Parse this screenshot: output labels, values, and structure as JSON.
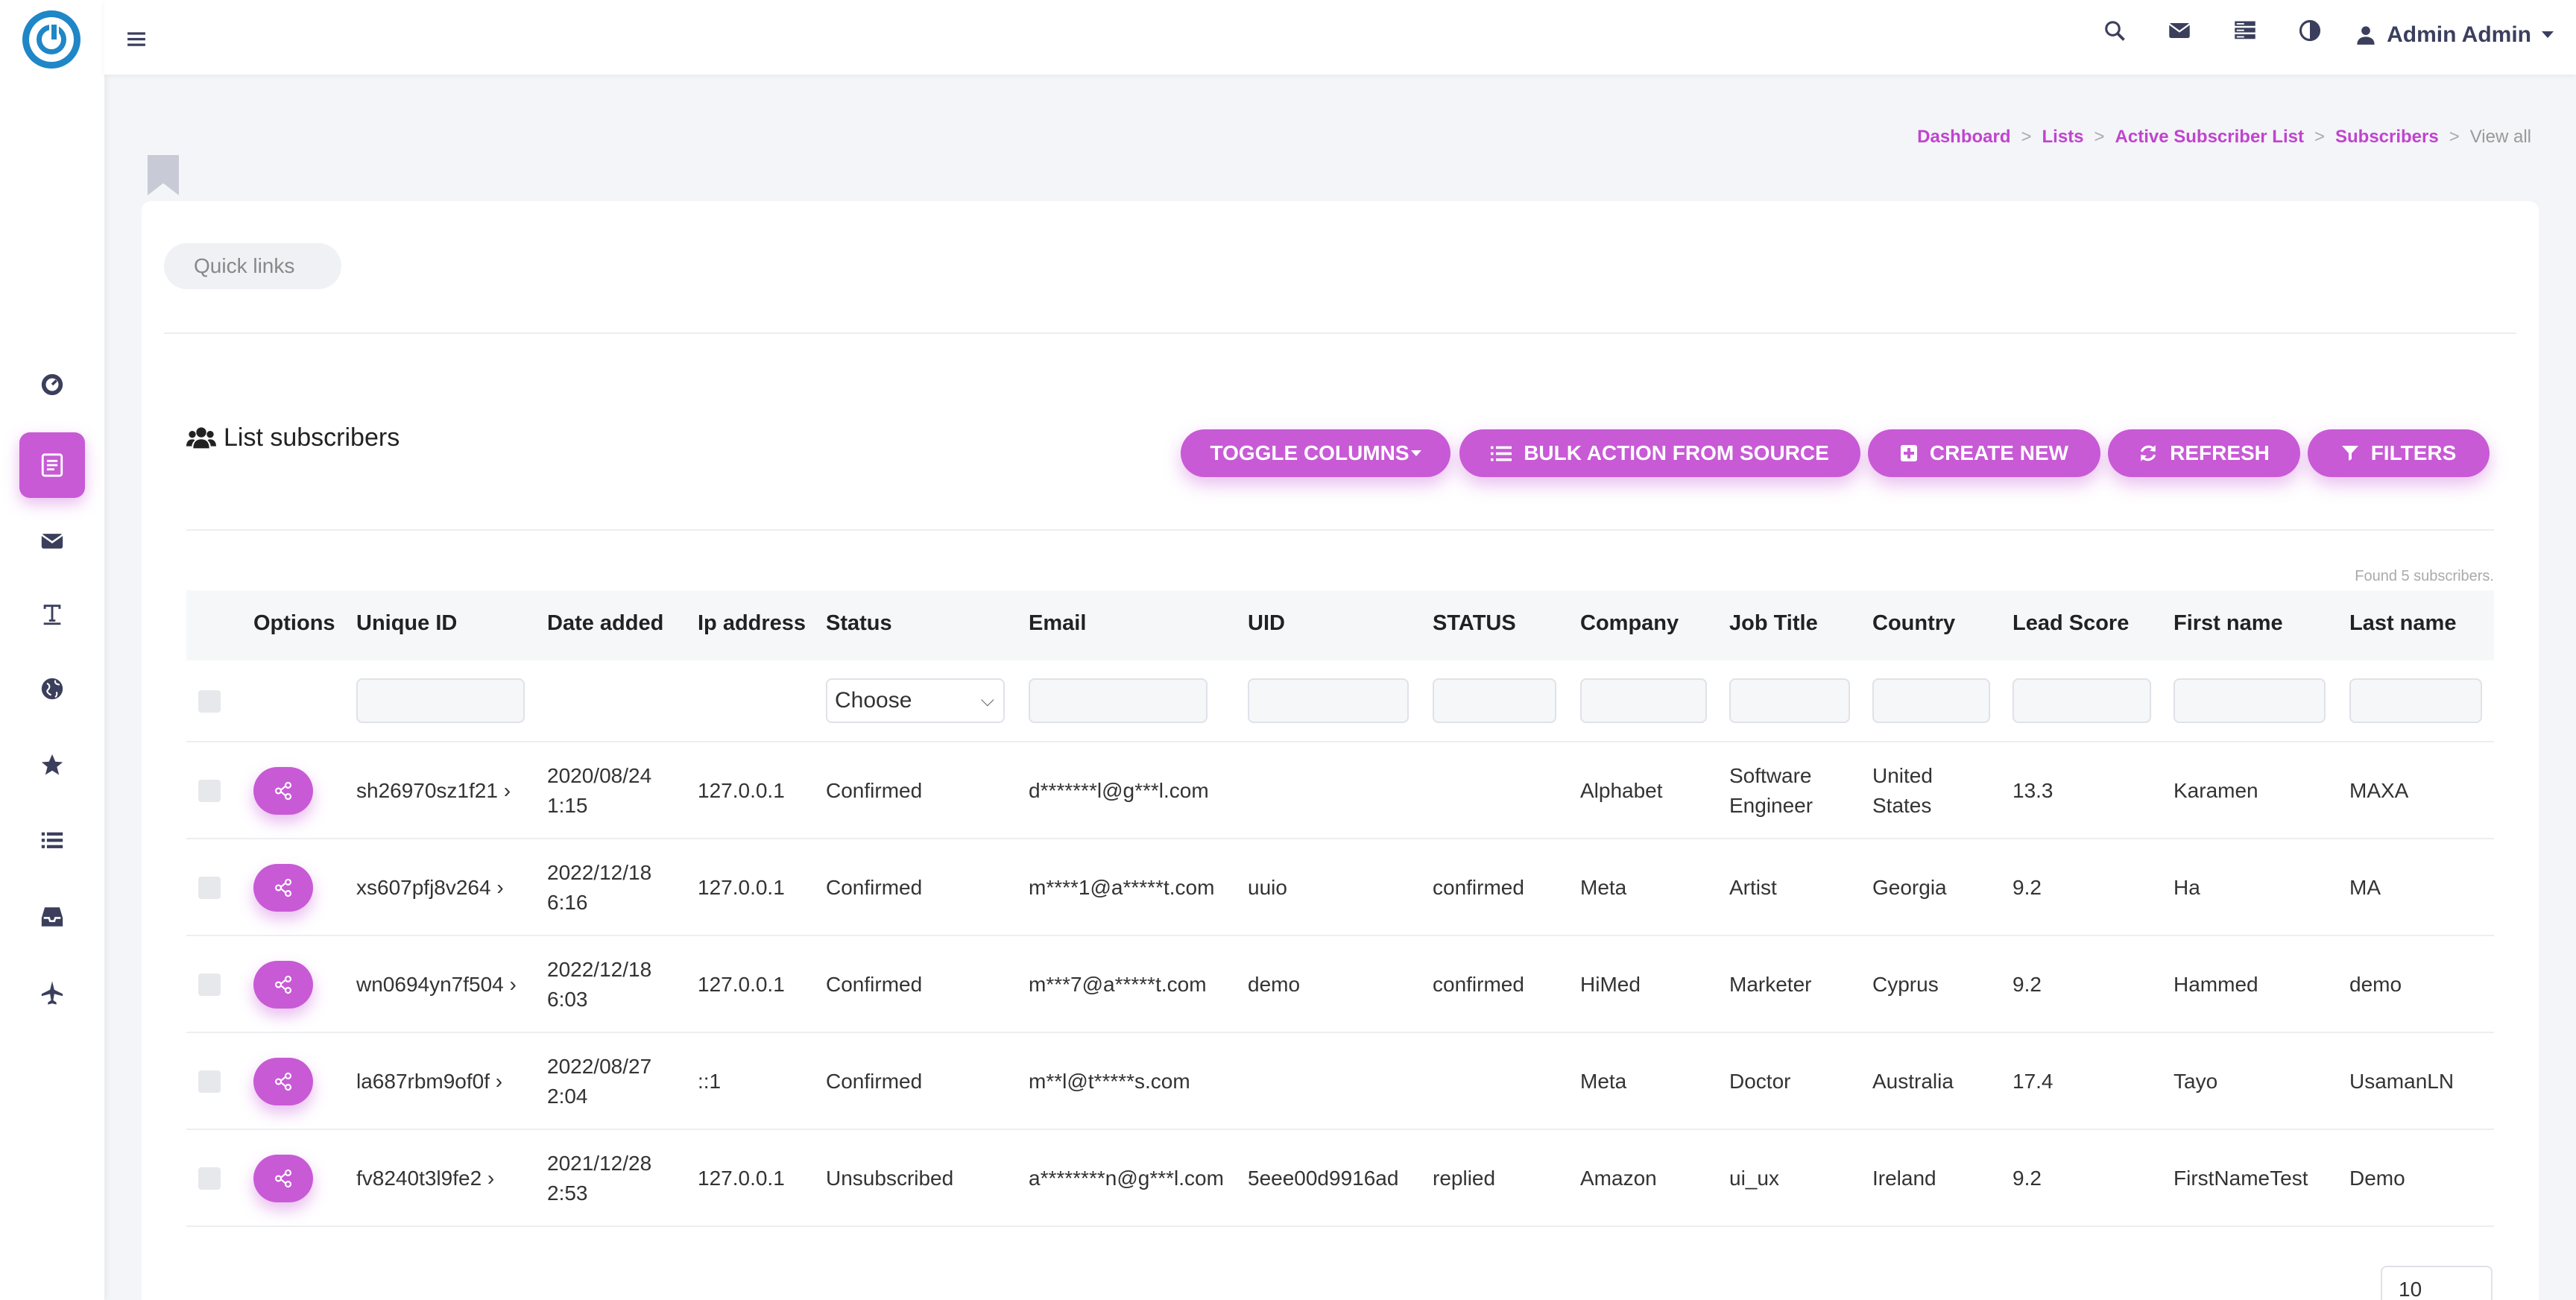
{
  "topbar": {
    "user_name": "Admin Admin"
  },
  "breadcrumb": [
    {
      "label": "Dashboard"
    },
    {
      "label": "Lists"
    },
    {
      "label": "Active Subscriber List"
    },
    {
      "label": "Subscribers"
    },
    {
      "label": "View all"
    }
  ],
  "quick_links_label": "Quick links",
  "list": {
    "title": "List subscribers",
    "found_text": "Found 5 subscribers."
  },
  "buttons": {
    "toggle_columns": "TOGGLE COLUMNS",
    "bulk_action": "BULK ACTION FROM SOURCE",
    "create_new": "CREATE NEW",
    "refresh": "REFRESH",
    "filters": "FILTERS"
  },
  "colors": {
    "accent": "#c85ad6",
    "brand_logo": "#1f86c7"
  },
  "table": {
    "columns": [
      "Options",
      "Unique ID",
      "Date added",
      "Ip address",
      "Status",
      "Email",
      "UID",
      "STATUS",
      "Company",
      "Job Title",
      "Country",
      "Lead Score",
      "First name",
      "Last name"
    ],
    "status_filter_value": "Choose",
    "rows": [
      {
        "uid": "sh26970sz1f21 ›",
        "date1": "2020/08/24",
        "date2": "1:15",
        "ip": "127.0.0.1",
        "status": "Confirmed",
        "email": "d*******l@g***l.com",
        "uid2": "",
        "status2": "",
        "company": "Alphabet",
        "job1": "Software",
        "job2": "Engineer",
        "country1": "United",
        "country2": "States",
        "score": "13.3",
        "first": "Karamen",
        "last": "MAXA"
      },
      {
        "uid": "xs607pfj8v264 ›",
        "date1": "2022/12/18",
        "date2": "6:16",
        "ip": "127.0.0.1",
        "status": "Confirmed",
        "email": "m****1@a*****t.com",
        "uid2": "uuio",
        "status2": "confirmed",
        "company": "Meta",
        "job1": "Artist",
        "job2": "",
        "country1": "Georgia",
        "country2": "",
        "score": "9.2",
        "first": "Ha",
        "last": "MA"
      },
      {
        "uid": "wn0694yn7f504 ›",
        "date1": "2022/12/18",
        "date2": "6:03",
        "ip": "127.0.0.1",
        "status": "Confirmed",
        "email": "m***7@a*****t.com",
        "uid2": "demo",
        "status2": "confirmed",
        "company": "HiMed",
        "job1": "Marketer",
        "job2": "",
        "country1": "Cyprus",
        "country2": "",
        "score": "9.2",
        "first": "Hammed",
        "last": "demo"
      },
      {
        "uid": "la687rbm9of0f ›",
        "date1": "2022/08/27",
        "date2": "2:04",
        "ip": "::1",
        "status": "Confirmed",
        "email": "m**l@t*****s.com",
        "uid2": "",
        "status2": "",
        "company": "Meta",
        "job1": "Doctor",
        "job2": "",
        "country1": "Australia",
        "country2": "",
        "score": "17.4",
        "first": "Tayo",
        "last": "UsamanLN"
      },
      {
        "uid": "fv8240t3l9fe2 ›",
        "date1": "2021/12/28",
        "date2": "2:53",
        "ip": "127.0.0.1",
        "status": "Unsubscribed",
        "email": "a********n@g***l.com",
        "uid2": "5eee00d9916ad",
        "status2": "replied",
        "company": "Amazon",
        "job1": "ui_ux",
        "job2": "",
        "country1": "Ireland",
        "country2": "",
        "score": "9.2",
        "first": "FirstNameTest",
        "last": "Demo"
      }
    ]
  },
  "pager": {
    "page_size": "10"
  },
  "icons": {
    "sidebar": [
      "dashboard-icon",
      "lists-icon",
      "campaigns-icon",
      "templates-icon",
      "world-icon",
      "star-icon",
      "list-icon",
      "inbox-icon",
      "plane-icon"
    ],
    "topbar": [
      "search-icon",
      "mail-icon",
      "servers-icon",
      "contrast-icon",
      "user-icon"
    ]
  }
}
